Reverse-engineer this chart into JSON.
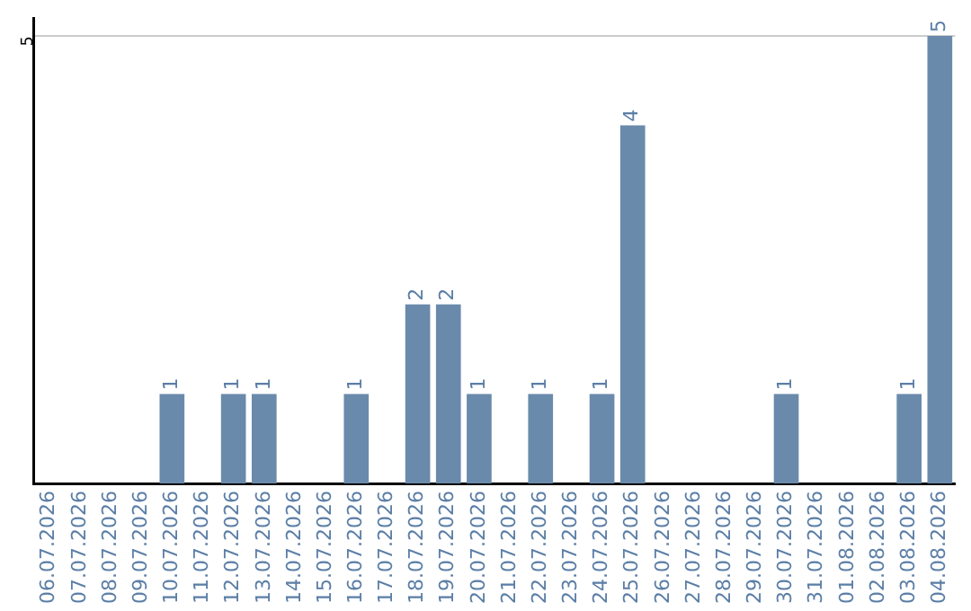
{
  "chart_data": {
    "type": "bar",
    "categories": [
      "06.07.2026",
      "07.07.2026",
      "08.07.2026",
      "09.07.2026",
      "10.07.2026",
      "11.07.2026",
      "12.07.2026",
      "13.07.2026",
      "14.07.2026",
      "15.07.2026",
      "16.07.2026",
      "17.07.2026",
      "18.07.2026",
      "19.07.2026",
      "20.07.2026",
      "21.07.2026",
      "22.07.2026",
      "23.07.2026",
      "24.07.2026",
      "25.07.2026",
      "26.07.2026",
      "27.07.2026",
      "28.07.2026",
      "29.07.2026",
      "30.07.2026",
      "31.07.2026",
      "01.08.2026",
      "02.08.2026",
      "03.08.2026",
      "04.08.2026"
    ],
    "values": [
      0,
      0,
      0,
      0,
      1,
      0,
      1,
      1,
      0,
      0,
      1,
      0,
      2,
      2,
      1,
      0,
      1,
      0,
      1,
      4,
      0,
      0,
      0,
      0,
      1,
      0,
      0,
      0,
      1,
      5
    ],
    "value_labels": [
      null,
      null,
      null,
      null,
      "1",
      null,
      "1",
      "1",
      null,
      null,
      "1",
      null,
      "2",
      "2",
      "1",
      null,
      "1",
      null,
      "1",
      "4",
      null,
      null,
      null,
      null,
      "1",
      null,
      null,
      null,
      "1",
      "5"
    ],
    "color": "#6a8aab",
    "ylim": [
      0,
      5.2
    ],
    "yticks": [
      5
    ],
    "grid": "y",
    "legend": false
  }
}
